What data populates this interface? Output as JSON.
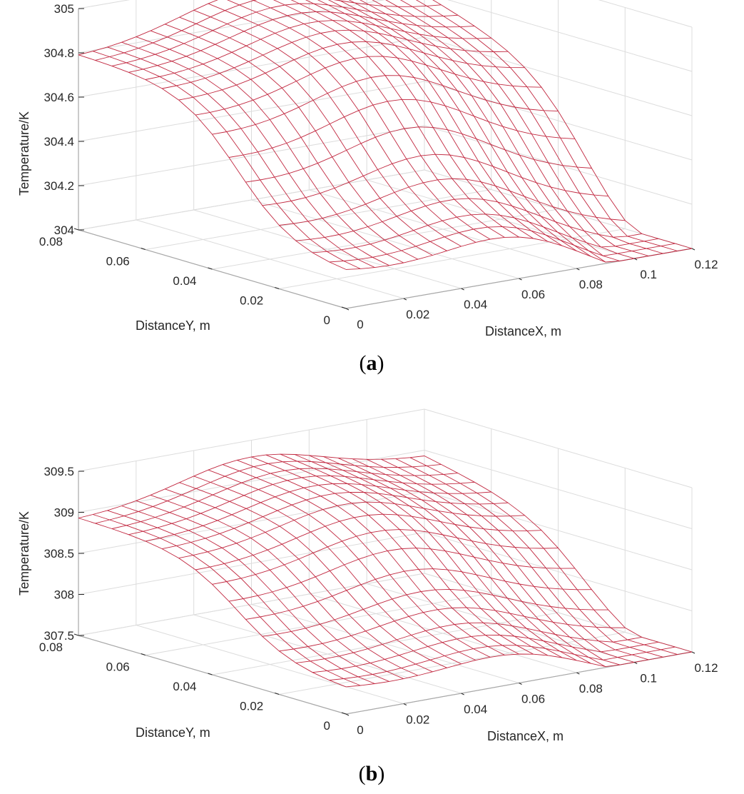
{
  "chart_data": [
    {
      "type": "surface",
      "caption_letter": "a",
      "zlabel": "Temperature/K",
      "xlabel": "DistanceX, m",
      "ylabel": "DistanceY, m",
      "xlim": [
        0,
        0.12
      ],
      "ylim": [
        0,
        0.08
      ],
      "zlim": [
        304,
        305
      ],
      "xticks": [
        "0",
        "0.02",
        "0.04",
        "0.06",
        "0.08",
        "0.1",
        "0.12"
      ],
      "yticks": [
        "0",
        "0.02",
        "0.04",
        "0.06",
        "0.08"
      ],
      "zticks": [
        "304",
        "304.2",
        "304.4",
        "304.6",
        "304.8",
        "305"
      ],
      "grid": true,
      "mesh_color": "#c1273f",
      "surface": {
        "t_min": 304.0,
        "t_max": 304.95,
        "near_x_min": 304.0,
        "far_y_min": 304.65,
        "peak_x": 0.06,
        "peak_y": 0.06
      }
    },
    {
      "type": "surface",
      "caption_letter": "b",
      "zlabel": "Temperature/K",
      "xlabel": "DistanceX, m",
      "ylabel": "DistanceY, m",
      "xlim": [
        0,
        0.12
      ],
      "ylim": [
        0,
        0.08
      ],
      "zlim": [
        307.5,
        309.5
      ],
      "xticks": [
        "0",
        "0.02",
        "0.04",
        "0.06",
        "0.08",
        "0.1",
        "0.12"
      ],
      "yticks": [
        "0",
        "0.02",
        "0.04",
        "0.06",
        "0.08"
      ],
      "zticks": [
        "307.5",
        "308",
        "308.5",
        "309",
        "309.5"
      ],
      "grid": true,
      "mesh_color": "#c1273f",
      "surface": {
        "t_min": 307.5,
        "t_max": 309.3,
        "near_x_min": 307.5,
        "far_y_min": 308.6,
        "peak_x": 0.06,
        "peak_y": 0.06
      }
    }
  ]
}
